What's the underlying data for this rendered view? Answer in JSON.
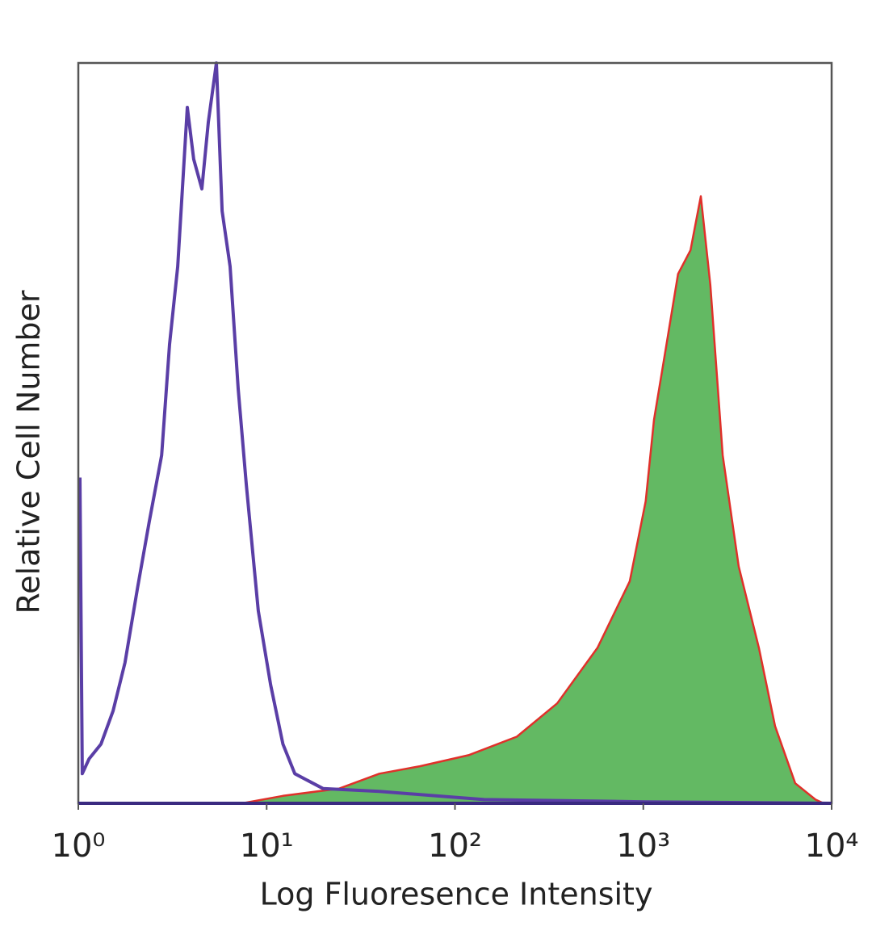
{
  "chart_data": {
    "type": "histogram-overlay",
    "x_label": "Log Fluoresence Intensity",
    "y_label": "Relative Cell Number",
    "xscale": "log",
    "xlim": [
      1,
      10000
    ],
    "ylim": [
      0,
      100
    ],
    "xticks": [
      {
        "value": 1,
        "label": "10⁰"
      },
      {
        "value": 10,
        "label": "10¹"
      },
      {
        "value": 100,
        "label": "10²"
      },
      {
        "value": 1000,
        "label": "10³"
      },
      {
        "value": 10000,
        "label": "10⁴"
      }
    ],
    "series": [
      {
        "color": "#5a3ea6",
        "filled": false,
        "x": [
          1.02,
          1.05,
          1.14,
          1.32,
          1.53,
          1.77,
          2.06,
          2.38,
          2.77,
          3.05,
          3.37,
          3.79,
          4.1,
          4.53,
          4.9,
          5.41,
          5.8,
          6.4,
          7.06,
          7.8,
          9.03,
          10.5,
          12.2,
          14.1,
          19.9,
          39.7,
          143,
          1030,
          10000
        ],
        "values": [
          44,
          4,
          6,
          8,
          12.5,
          19,
          29,
          38,
          47,
          62,
          72.5,
          94,
          87,
          83,
          92,
          100,
          80,
          72.5,
          56,
          43,
          26,
          16,
          8,
          4,
          2,
          1.6,
          0.5,
          0.2,
          0
        ]
      },
      {
        "color": "#e0302a",
        "fill_color": "#63b963",
        "filled": true,
        "x": [
          7.42,
          12.2,
          24.3,
          39.7,
          65.1,
          118,
          213,
          349,
          571,
          848,
          1030,
          1140,
          1320,
          1530,
          1780,
          2020,
          2270,
          2640,
          3210,
          4110,
          5010,
          6410,
          8210,
          9060
        ],
        "values": [
          0,
          1,
          2,
          4,
          5,
          6.5,
          9,
          13.5,
          21,
          30,
          40.8,
          51.8,
          61.6,
          71.5,
          74.7,
          82,
          70,
          47,
          32,
          21,
          10.4,
          2.7,
          0.5,
          0
        ]
      }
    ]
  }
}
